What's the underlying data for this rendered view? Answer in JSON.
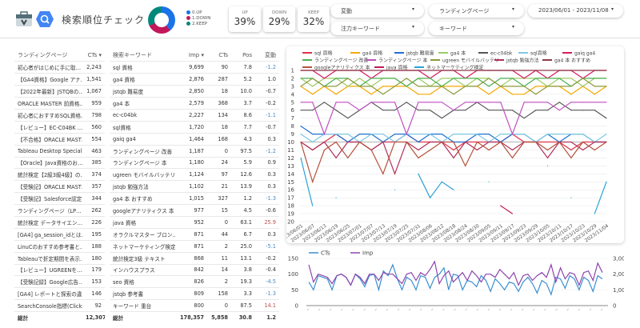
{
  "header": {
    "title": "検索順位チェック",
    "logo_icon": "search-console-toolbox-icon",
    "brand_icon": "search-hexagon-icon"
  },
  "donut": {
    "legend": [
      {
        "label": "0.UP",
        "value": 39,
        "color": "#1a73e8"
      },
      {
        "label": "1.DOWN",
        "value": 29,
        "color": "#c2185b"
      },
      {
        "label": "2.KEEP",
        "value": 32,
        "color": "#00897b"
      }
    ]
  },
  "kpis": [
    {
      "label": "UP",
      "value": "39%"
    },
    {
      "label": "DOWN",
      "value": "29%"
    },
    {
      "label": "KEEP",
      "value": "32%"
    }
  ],
  "filters": [
    {
      "label": "変動"
    },
    {
      "label": "ランディングページ"
    },
    {
      "label": "2023/06/01 - 2023/11/08"
    },
    {
      "label": "注力キーワード"
    },
    {
      "label": "キーワード"
    }
  ],
  "lp_table": {
    "headers": [
      "ランディングページ",
      "CTs ▾"
    ],
    "rows": [
      [
        "初心者がはじめに手に取…",
        "2,243"
      ],
      [
        "【GA4資格】Google アナ…",
        "1,541"
      ],
      [
        "【2022年最新】JSTQBの…",
        "1,067"
      ],
      [
        "ORACLE MASTER 前資格…",
        "959"
      ],
      [
        "初心者におすすめSQL資格…",
        "798"
      ],
      [
        "【レビュー】EC-C04BK …",
        "560"
      ],
      [
        "【不合格】ORACLE MAST…",
        "554"
      ],
      [
        "Tableau Desktop Specialis…",
        "463"
      ],
      [
        "【Oracle】Java資格のお…",
        "385"
      ],
      [
        "統計検定【2級3級4級】の…",
        "374"
      ],
      [
        "【受験記】ORACLE MAST…",
        "357"
      ],
      [
        "【受験記】Salesforce認定…",
        "344"
      ],
      [
        "ランディングページ（LP…",
        "262"
      ],
      [
        "統計検定 データサイエン…",
        "226"
      ],
      [
        "[GA4] ga_session_idとは…",
        "195"
      ],
      [
        "LinuCのおすすめ参考書と…",
        "188"
      ],
      [
        "Tableauで折定期間を表示…",
        "180"
      ],
      [
        "【レビュー】UGREENを…",
        "179"
      ],
      [
        "【受験記録】Google広告…",
        "153"
      ],
      [
        "[GA4] レポートと探索の違…",
        "146"
      ],
      [
        "SearchConsole指標(Clicks…",
        "92"
      ]
    ],
    "total": [
      "総計",
      "12,307"
    ]
  },
  "kw_table": {
    "headers": [
      "検索キーワード",
      "Imp ▾",
      "CTs",
      "Pos",
      "変動"
    ],
    "rows": [
      [
        "sql 資格",
        "9,699",
        "90",
        "7.8",
        "-1.2"
      ],
      [
        "ga4 資格",
        "2,876",
        "287",
        "5.2",
        "1.0"
      ],
      [
        "jstqb 難易度",
        "2,850",
        "18",
        "10.0",
        "-0.7"
      ],
      [
        "ga4 本",
        "2,579",
        "368",
        "3.7",
        "-0.2"
      ],
      [
        "ec-c04bk",
        "2,227",
        "134",
        "8.6",
        "-1.1"
      ],
      [
        "sql資格",
        "1,720",
        "18",
        "7.7",
        "-0.7"
      ],
      [
        "gaiq ga4",
        "1,464",
        "168",
        "4.3",
        "0.3"
      ],
      [
        "ランディングページ 改善",
        "1,187",
        "0",
        "97.5",
        "-1.2"
      ],
      [
        "ランディングページ 本",
        "1,180",
        "24",
        "5.9",
        "0.9"
      ],
      [
        "ugreen モバイルバッテリー",
        "1,124",
        "97",
        "12.6",
        "0.3"
      ],
      [
        "jstqb 勉強方法",
        "1,102",
        "21",
        "13.9",
        "0.3"
      ],
      [
        "ga4 本 おすすめ",
        "1,015",
        "327",
        "1.2",
        "-1.3"
      ],
      [
        "googleアナリティクス 本",
        "977",
        "15",
        "4.5",
        "-0.6"
      ],
      [
        "java 資格",
        "952",
        "0",
        "63.1",
        "25.9"
      ],
      [
        "オラクルマスター ブロン…",
        "871",
        "44",
        "6.7",
        "0.3"
      ],
      [
        "ネットマーケティング検定",
        "871",
        "2",
        "25.0",
        "-5.1"
      ],
      [
        "統計検定3級 テキスト",
        "868",
        "11",
        "13.1",
        "-0.2"
      ],
      [
        "インハウスプラス",
        "842",
        "14",
        "3.8",
        "-0.4"
      ],
      [
        "seo 資格",
        "826",
        "2",
        "19.3",
        "-4.5"
      ],
      [
        "jstqb 参考書",
        "809",
        "158",
        "3.3",
        "-1.3"
      ],
      [
        "キーワード 重台",
        "800",
        "0",
        "87.5",
        "14.1"
      ]
    ],
    "total": [
      "総計",
      "178,357",
      "5,858",
      "30.8",
      "1.2"
    ],
    "change_colors": {
      "negative": "#4a8ac4",
      "high": "#c0504d",
      "normal": "#333333"
    }
  },
  "chart_data": [
    {
      "type": "line",
      "ylabel": "",
      "y_reversed": true,
      "ylim": [
        1,
        20
      ],
      "yticks": [
        1,
        2,
        3,
        4,
        5,
        6,
        7,
        8,
        9,
        10,
        11,
        12,
        13,
        14,
        15,
        16,
        17,
        18,
        19,
        20
      ],
      "grid": true,
      "legend": "top",
      "x": [
        "2023/06/01",
        "2023/06/07",
        "2023/06/13",
        "2023/06/19",
        "2023/06/25",
        "2023/07/01",
        "2023/07/07",
        "2023/07/13",
        "2023/07/19",
        "2023/07/25",
        "2023/07/31",
        "2023/08/06",
        "2023/08/12",
        "2023/08/18",
        "2023/08/24",
        "2023/08/30",
        "2023/09/05",
        "2023/09/11",
        "2023/09/17",
        "2023/09/23",
        "2023/09/29",
        "2023/10/05",
        "2023/10/11",
        "2023/10/17",
        "2023/10/23",
        "2023/10/29",
        "2023/11/04"
      ],
      "series": [
        {
          "name": "sql 資格",
          "color": "#e0314b",
          "values": [
            10,
            11,
            10,
            9,
            10,
            10,
            11,
            10,
            10,
            9,
            10,
            10,
            10,
            11,
            10,
            10,
            10,
            10,
            9,
            10,
            10,
            10,
            10,
            11,
            10,
            10,
            10
          ]
        },
        {
          "name": "ga4 資格",
          "color": "#f5a800",
          "values": [
            3,
            4,
            3,
            4,
            3,
            3,
            4,
            3,
            3,
            3,
            4,
            4,
            3,
            3,
            3,
            3,
            4,
            3,
            4,
            4,
            3,
            3,
            3,
            4,
            3,
            4,
            3
          ]
        },
        {
          "name": "jstqb 難易度",
          "color": "#1f6fd1",
          "values": [
            8,
            9,
            9,
            9,
            10,
            9,
            9,
            10,
            9,
            9,
            10,
            9,
            9,
            10,
            10,
            9,
            9,
            10,
            9,
            9,
            10,
            9,
            10,
            9,
            9,
            10,
            10
          ]
        },
        {
          "name": "ga4 本",
          "color": "#9ccc65",
          "values": [
            2,
            3,
            2,
            2,
            3,
            2,
            3,
            2,
            2,
            3,
            2,
            3,
            2,
            2,
            3,
            2,
            2,
            3,
            2,
            2,
            2,
            3,
            2,
            2,
            3,
            2,
            2
          ]
        },
        {
          "name": "ec-c04bk",
          "color": "#555555",
          "values": [
            6,
            6,
            5,
            6,
            7,
            6,
            5,
            6,
            6,
            5,
            6,
            6,
            7,
            6,
            6,
            5,
            6,
            6,
            6,
            7,
            6,
            6,
            5,
            6,
            6,
            6,
            7
          ]
        },
        {
          "name": "sql資格",
          "color": "#7ec8e3",
          "values": [
            9,
            10,
            9,
            9,
            9,
            10,
            9,
            9,
            10,
            9,
            9,
            9,
            10,
            9,
            9,
            9,
            10,
            9,
            9,
            9,
            10,
            9,
            9,
            9,
            9,
            10,
            9
          ]
        },
        {
          "name": "gaiq ga4",
          "color": "#d81b60",
          "values": [
            1,
            1,
            2,
            1,
            1,
            1,
            2,
            1,
            1,
            1,
            1,
            2,
            1,
            1,
            2,
            1,
            1,
            1,
            1,
            2,
            1,
            2,
            1,
            1,
            2,
            1,
            1
          ]
        },
        {
          "name": "ランディングページ 改善",
          "color": "#4caf50",
          "values": [
            2,
            2,
            3,
            2,
            2,
            3,
            2,
            2,
            2,
            3,
            2,
            2,
            3,
            2,
            2,
            2,
            3,
            2,
            2,
            3,
            2,
            2,
            2,
            3,
            2,
            2,
            2
          ]
        },
        {
          "name": "ランディングページ 本",
          "color": "#c04fc0",
          "values": [
            5,
            5,
            9,
            5,
            5,
            6,
            5,
            5,
            5,
            9,
            5,
            5,
            5,
            6,
            5,
            5,
            5,
            5,
            9,
            5,
            5,
            5,
            6,
            5,
            5,
            5,
            5
          ]
        },
        {
          "name": "ugreen モバイルバッテリー",
          "color": "#8d9a3a",
          "values": [
            3,
            2,
            3,
            3,
            2,
            3,
            3,
            4,
            3,
            2,
            3,
            3,
            3,
            4,
            3,
            3,
            2,
            3,
            3,
            3,
            4,
            3,
            3,
            3,
            2,
            3,
            3
          ]
        },
        {
          "name": "jstqb 勉強方法",
          "color": "#b0305a",
          "values": [
            10,
            11,
            10,
            12,
            10,
            10,
            11,
            10,
            14,
            10,
            11,
            10,
            10,
            12,
            10,
            11,
            10,
            10,
            11,
            10,
            10,
            12,
            10,
            10,
            11,
            10,
            10
          ]
        },
        {
          "name": "ga4 本 おすすめ",
          "color": "#8e3a4a",
          "values": [
            1,
            1,
            1,
            1,
            1,
            1,
            1,
            1,
            1,
            1,
            1,
            1,
            1,
            1,
            1,
            1,
            1,
            1,
            1,
            1,
            1,
            1,
            1,
            1,
            1,
            1,
            1
          ]
        },
        {
          "name": "googleアナリティクス 本",
          "color": "#b5523b",
          "values": [
            10,
            15,
            11,
            10,
            12,
            10,
            11,
            14,
            10,
            10,
            12,
            11,
            10,
            10,
            13,
            10,
            11,
            10,
            12,
            10,
            10,
            11,
            10,
            12,
            10,
            11,
            10
          ]
        },
        {
          "name": "java 資格",
          "color": "#c2185b",
          "values": [
            null,
            null,
            null,
            null,
            null,
            null,
            null,
            null,
            null,
            null,
            null,
            null,
            null,
            null,
            null,
            null,
            null,
            18,
            19,
            null,
            null,
            null,
            null,
            null,
            null,
            null,
            null
          ]
        },
        {
          "name": "ネットマーケティング検定",
          "color": "#29a3d8",
          "values": [
            12,
            18,
            null,
            17,
            null,
            null,
            null,
            null,
            16,
            null,
            14,
            17,
            15,
            16,
            null,
            null,
            15,
            null,
            null,
            null,
            null,
            13,
            null,
            17,
            null,
            19,
            15
          ]
        }
      ]
    },
    {
      "type": "line",
      "legend": "top-left",
      "grid": true,
      "y_left": {
        "ylim": [
          0,
          150
        ],
        "ticks": [
          "0",
          "50",
          "100",
          "150"
        ]
      },
      "y_right": {
        "ylim": [
          0,
          3000
        ],
        "ticks": [
          "0",
          "1,000",
          "2,000",
          "3,000"
        ]
      },
      "series": [
        {
          "name": "CTs",
          "axis": "left",
          "color": "#3a8fd0",
          "values": [
            75,
            50,
            95,
            90,
            85,
            50,
            95,
            100,
            90,
            65,
            100,
            85,
            60,
            95,
            100,
            50,
            110,
            95,
            130,
            85,
            50,
            90,
            80,
            50,
            95,
            90,
            55,
            90,
            100,
            120,
            50,
            100,
            95,
            50,
            80,
            75,
            60,
            95,
            80,
            45,
            85,
            70,
            50,
            75,
            70,
            45,
            75,
            90,
            70,
            40,
            80,
            70,
            35,
            90,
            85,
            55,
            95,
            85,
            50,
            90,
            80,
            45,
            95,
            85
          ]
        },
        {
          "name": "Imp",
          "axis": "right",
          "color": "#8e44ad",
          "values": [
            2600,
            1500,
            2000,
            1900,
            1800,
            1400,
            1900,
            2000,
            1800,
            1300,
            2000,
            1800,
            1400,
            2000,
            2000,
            1600,
            2100,
            2000,
            2000,
            1700,
            1400,
            2000,
            2100,
            1600,
            2100,
            1900,
            2300,
            2800,
            1400,
            1900,
            2200,
            1500,
            1800,
            2100,
            1600,
            2200,
            1900,
            1500,
            2000,
            2000,
            1800,
            2300,
            2000,
            1700,
            2100,
            1300,
            1900,
            2000,
            1600,
            1900,
            2100,
            1800,
            2600,
            1500,
            2400,
            1700,
            2100,
            2000,
            1300,
            2100,
            2200,
            1600,
            2700,
            2100
          ]
        }
      ]
    }
  ]
}
